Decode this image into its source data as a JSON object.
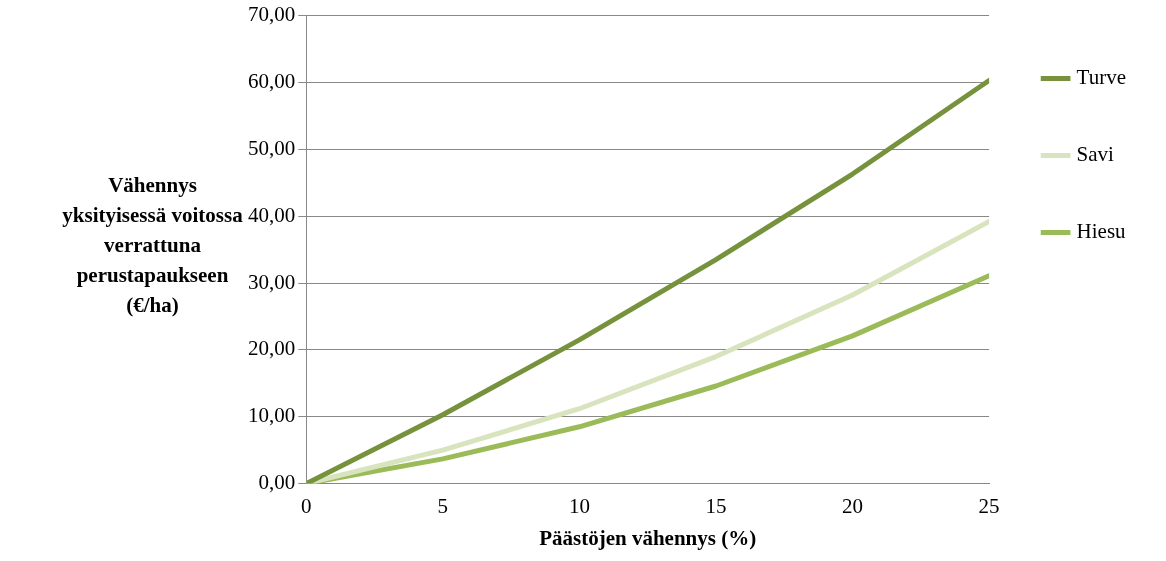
{
  "chart_data": {
    "type": "line",
    "xlabel": "Päästöjen vähennys (%)",
    "ylabel": "Vähennys yksityisessä voitossa verrattuna perustapaukseen (€/ha)",
    "x": [
      0,
      5,
      10,
      15,
      20,
      25
    ],
    "series": [
      {
        "name": "Turve",
        "color": "#76923c",
        "values": [
          0,
          10.3,
          21.5,
          33.5,
          46.3,
          60.3
        ]
      },
      {
        "name": "Savi",
        "color": "#d7e4bd",
        "values": [
          0,
          5.0,
          11.2,
          19.0,
          28.2,
          39.2
        ]
      },
      {
        "name": "Hiesu",
        "color": "#9bbb59",
        "values": [
          0,
          3.7,
          8.5,
          14.6,
          22.1,
          31.1
        ]
      }
    ],
    "xlim": [
      0,
      25
    ],
    "xticks": [
      0,
      5,
      10,
      15,
      20,
      25
    ],
    "ylim": [
      0,
      70
    ],
    "yticks": [
      {
        "value": 0,
        "label": "0,00"
      },
      {
        "value": 10,
        "label": "10,00"
      },
      {
        "value": 20,
        "label": "20,00"
      },
      {
        "value": 30,
        "label": "30,00"
      },
      {
        "value": 40,
        "label": "40,00"
      },
      {
        "value": 50,
        "label": "50,00"
      },
      {
        "value": 60,
        "label": "60,00"
      },
      {
        "value": 70,
        "label": "70,00"
      }
    ],
    "grid": "y",
    "legend": "right",
    "marker": "none",
    "line_style": "solid"
  }
}
